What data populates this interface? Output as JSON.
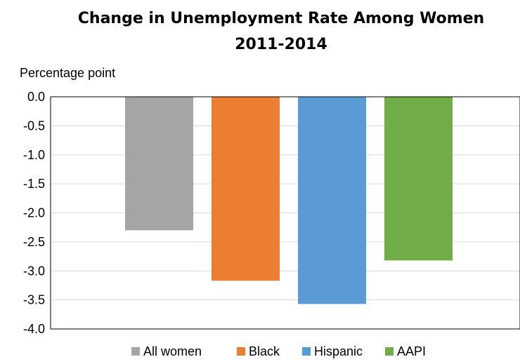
{
  "chart_data": {
    "type": "bar",
    "title": "Change in Unemployment Rate Among Women",
    "subtitle": "2011-2014",
    "ylabel": "Percentage point",
    "xlabel": "",
    "ylim": [
      -4.0,
      0.0
    ],
    "yticks": [
      "0.0",
      "-0.5",
      "-1.0",
      "-1.5",
      "-2.0",
      "-2.5",
      "-3.0",
      "-3.5",
      "-4.0"
    ],
    "categories": [
      "All women",
      "Black",
      "Hispanic",
      "AAPI"
    ],
    "values": [
      -2.3,
      -3.17,
      -3.57,
      -2.82
    ],
    "colors": [
      "#a5a5a5",
      "#ed7d31",
      "#5b9bd5",
      "#70ad47"
    ],
    "grid": true,
    "legend": "bottom"
  }
}
